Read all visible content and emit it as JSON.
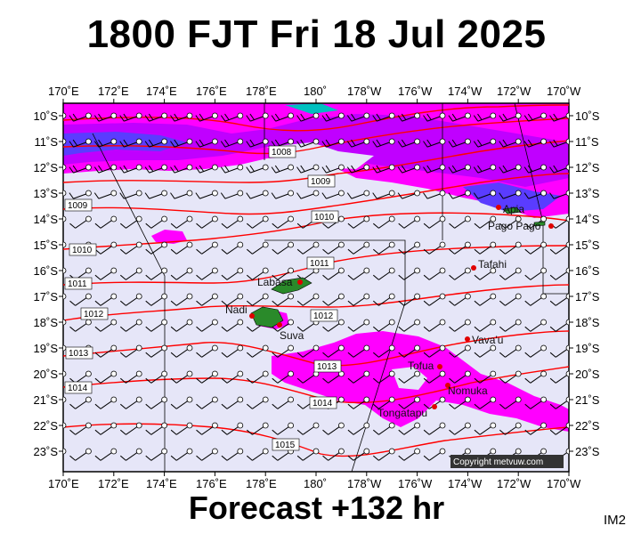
{
  "header": {
    "title": "1800 FJT Fri 18 Jul 2025"
  },
  "footer": {
    "forecast": "Forecast +132 hr",
    "panel_id": "IM2"
  },
  "map": {
    "longitude_labels": [
      "170˚E",
      "172˚E",
      "174˚E",
      "176˚E",
      "178˚E",
      "180˚",
      "178˚W",
      "176˚W",
      "174˚W",
      "172˚W",
      "170˚W"
    ],
    "latitude_labels": [
      "10˚S",
      "11˚S",
      "12˚S",
      "13˚S",
      "14˚S",
      "15˚S",
      "16˚S",
      "17˚S",
      "18˚S",
      "19˚S",
      "20˚S",
      "21˚S",
      "22˚S",
      "23˚S"
    ],
    "isobar_labels": [
      "1008",
      "1009",
      "1009",
      "1010",
      "1010",
      "1011",
      "1011",
      "1012",
      "1012",
      "1013",
      "1013",
      "1014",
      "1014",
      "1015"
    ],
    "places": [
      {
        "name": "Apia",
        "color": "#e00000"
      },
      {
        "name": "Pago Pago",
        "color": "#e00000"
      },
      {
        "name": "Tafahi",
        "color": "#e00000"
      },
      {
        "name": "Labasa",
        "color": "#e00000"
      },
      {
        "name": "Nadi",
        "color": "#e00000"
      },
      {
        "name": "Suva",
        "color": "#e00000"
      },
      {
        "name": "Vava'u",
        "color": "#e00000"
      },
      {
        "name": "Tofua",
        "color": "#e00000"
      },
      {
        "name": "Nomuka",
        "color": "#e00000"
      },
      {
        "name": "Tongatapu",
        "color": "#e00000"
      }
    ],
    "copyright": "Copyright metvuw.com",
    "colors": {
      "background": "#e6e6f8",
      "rain_light": "#ff00ff",
      "rain_mid": "#c000ff",
      "rain_heavy": "#5a3cff",
      "rain_extreme": "#00c0c0",
      "isobar": "#ff0000",
      "land": "#2a8a2a",
      "barb": "#000000"
    }
  }
}
